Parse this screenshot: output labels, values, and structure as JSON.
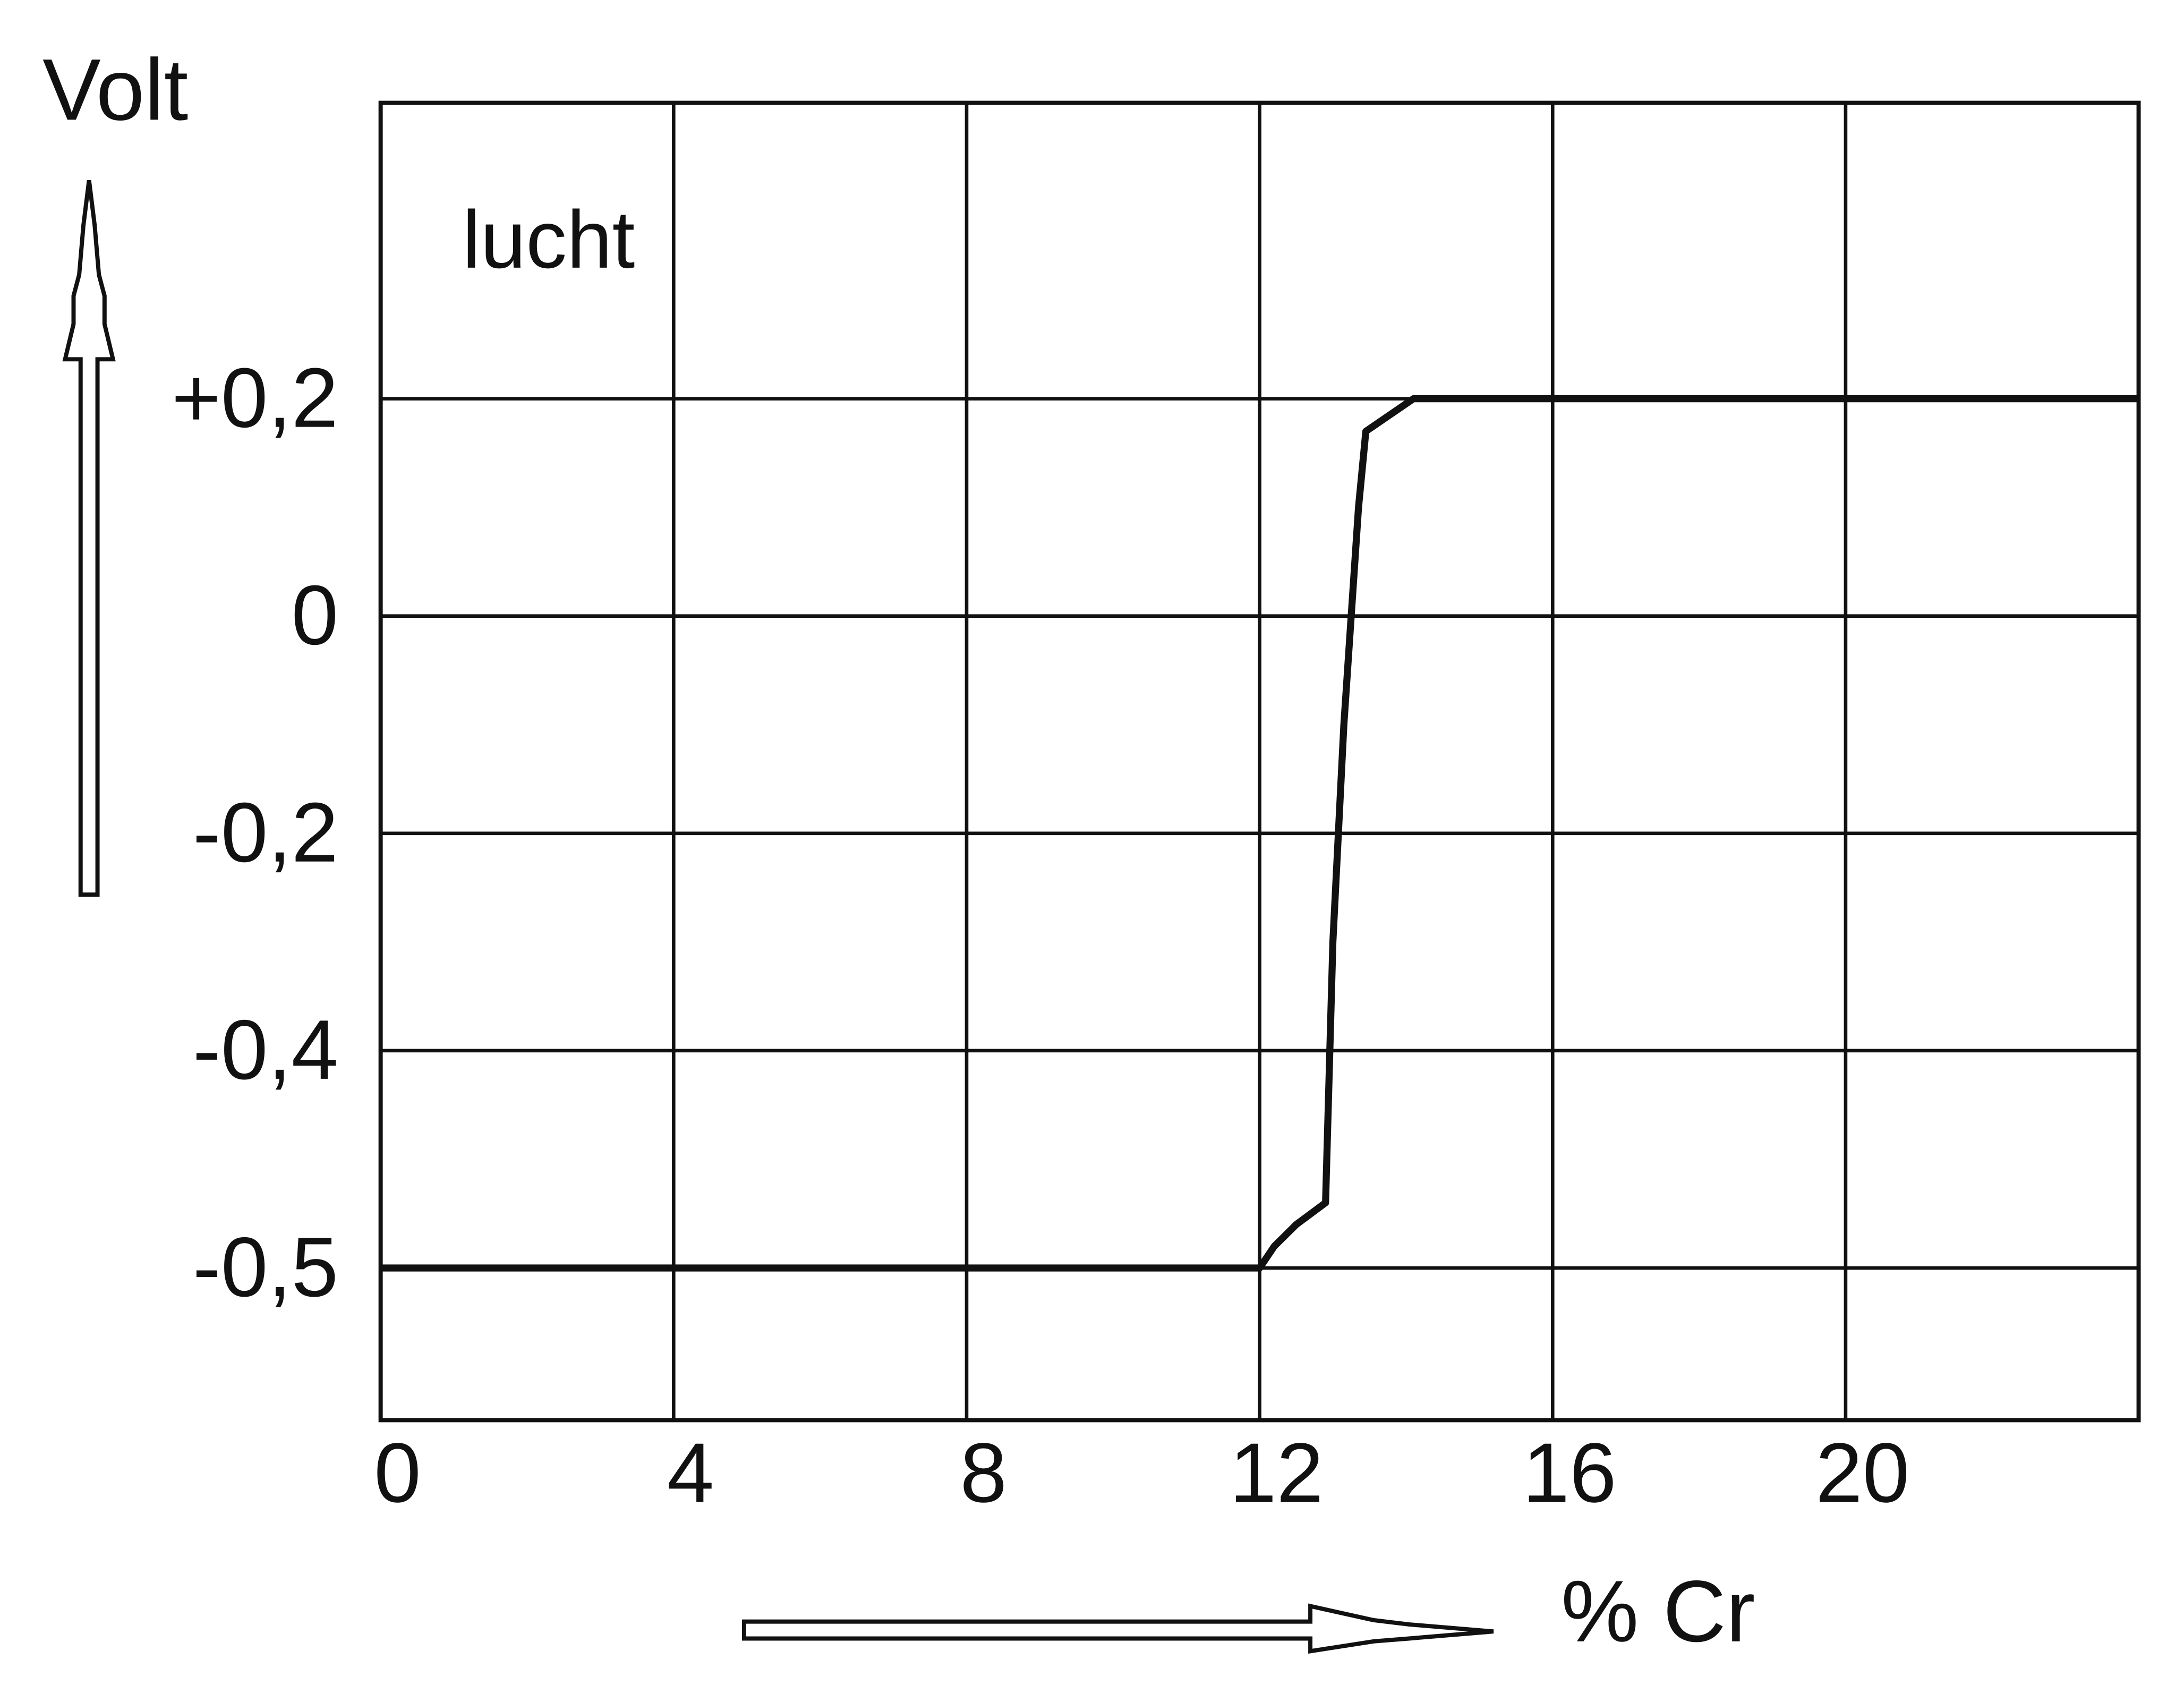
{
  "chart_data": {
    "type": "line",
    "y_label": "Volt",
    "x_label": "% Cr",
    "annotation": "lucht",
    "x": [
      0,
      12,
      12.2,
      12.5,
      12.9,
      13.0,
      13.15,
      13.25,
      13.35,
      13.45,
      14.1,
      24
    ],
    "series": [
      {
        "color": "#111111",
        "values": [
          -0.5,
          -0.5,
          -0.49,
          -0.48,
          -0.47,
          -0.3,
          -0.1,
          0,
          0.1,
          0.17,
          0.2,
          0.2
        ]
      }
    ],
    "xlim": [
      0,
      24
    ],
    "xticks": [
      0,
      4,
      8,
      12,
      16,
      20
    ],
    "ylim": [
      -0.57,
      0.47
    ],
    "yticks": [
      {
        "value": 0.2,
        "label": "+0,2"
      },
      0,
      {
        "value": -0.2,
        "label": "-0,2"
      },
      {
        "value": -0.4,
        "label": "-0,4"
      },
      {
        "value": -0.5,
        "label": "-0,5"
      }
    ],
    "grid": true
  }
}
